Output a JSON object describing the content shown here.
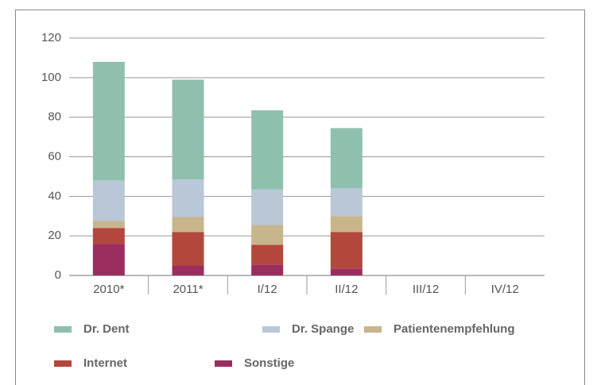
{
  "chart_data": {
    "type": "stacked-bar",
    "categories": [
      "2010*",
      "2011*",
      "I/12",
      "II/12",
      "III/12",
      "IV/12"
    ],
    "series": [
      {
        "name": "Sonstige",
        "color": "#9b2d5f",
        "values": [
          16,
          5,
          5.5,
          3.5,
          null,
          null
        ]
      },
      {
        "name": "Internet",
        "color": "#b3473b",
        "values": [
          8,
          17,
          10,
          18.5,
          null,
          null
        ]
      },
      {
        "name": "Patientenempfehlung",
        "color": "#c8b58c",
        "values": [
          3.5,
          7.5,
          10,
          8,
          null,
          null
        ]
      },
      {
        "name": "Dr. Spange",
        "color": "#b9c7d7",
        "values": [
          20.5,
          19,
          18,
          14,
          null,
          null
        ]
      },
      {
        "name": "Dr. Dent",
        "color": "#8fc0ae",
        "values": [
          60,
          50.5,
          40,
          30.5,
          null,
          null
        ]
      }
    ],
    "ylim": [
      0,
      120
    ],
    "yticks": [
      0,
      20,
      40,
      60,
      80,
      100,
      120
    ],
    "grid": true
  }
}
